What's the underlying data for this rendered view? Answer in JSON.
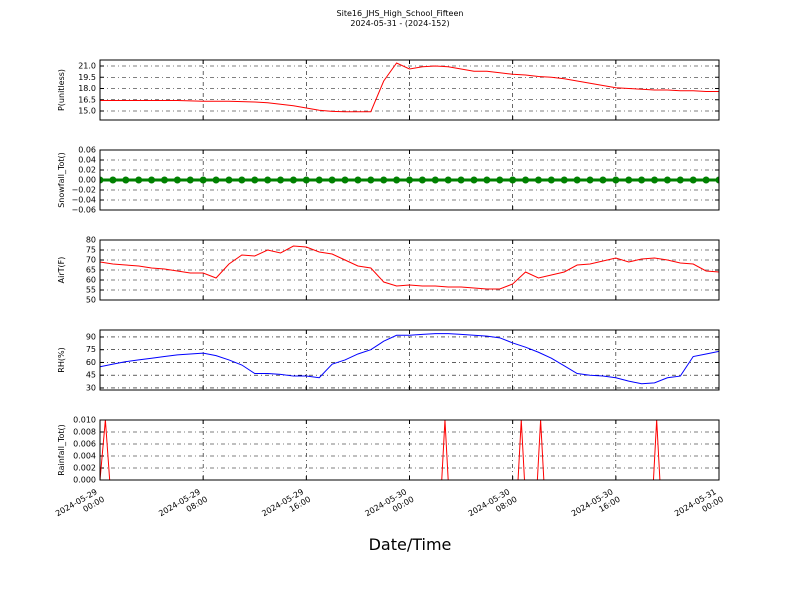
{
  "title": "Site16_JHS_High_School_Fifteen",
  "subtitle": "2024-05-31 - (2024-152)",
  "xlabel": "Date/Time",
  "chart_data": [
    {
      "type": "line",
      "ylabel": "P(unitless)",
      "color": "#ff0000",
      "grid": true,
      "xlim": [
        "2024-05-29 00:00",
        "2024-05-31 00:00"
      ],
      "xticks": [
        "2024-05-29 00:00",
        "2024-05-29 08:00",
        "2024-05-29 16:00",
        "2024-05-30 00:00",
        "2024-05-30 08:00",
        "2024-05-30 16:00",
        "2024-05-31 00:00"
      ],
      "ylim": [
        13.8,
        21.8
      ],
      "yticks": [
        {
          "value": 15,
          "label": "15.0"
        },
        {
          "value": 16.5,
          "label": "16.5"
        },
        {
          "value": 18,
          "label": "18.0"
        },
        {
          "value": 19.5,
          "label": "19.5"
        },
        {
          "value": 21,
          "label": "21.0"
        }
      ],
      "x": [
        "2024-05-29 00:00",
        "2024-05-29 01:00",
        "2024-05-29 02:00",
        "2024-05-29 03:00",
        "2024-05-29 04:00",
        "2024-05-29 05:00",
        "2024-05-29 06:00",
        "2024-05-29 07:00",
        "2024-05-29 08:00",
        "2024-05-29 09:00",
        "2024-05-29 10:00",
        "2024-05-29 11:00",
        "2024-05-29 12:00",
        "2024-05-29 13:00",
        "2024-05-29 14:00",
        "2024-05-29 15:00",
        "2024-05-29 16:00",
        "2024-05-29 17:00",
        "2024-05-29 18:00",
        "2024-05-29 19:00",
        "2024-05-29 20:00",
        "2024-05-29 21:00",
        "2024-05-29 22:00",
        "2024-05-29 23:00",
        "2024-05-30 00:00",
        "2024-05-30 01:00",
        "2024-05-30 02:00",
        "2024-05-30 03:00",
        "2024-05-30 04:00",
        "2024-05-30 05:00",
        "2024-05-30 06:00",
        "2024-05-30 07:00",
        "2024-05-30 08:00",
        "2024-05-30 09:00",
        "2024-05-30 10:00",
        "2024-05-30 11:00",
        "2024-05-30 12:00",
        "2024-05-30 13:00",
        "2024-05-30 14:00",
        "2024-05-30 15:00",
        "2024-05-30 16:00",
        "2024-05-30 17:00",
        "2024-05-30 18:00",
        "2024-05-30 19:00",
        "2024-05-30 20:00",
        "2024-05-30 21:00",
        "2024-05-30 22:00",
        "2024-05-30 23:00",
        "2024-05-31 00:00"
      ],
      "values": [
        16.4,
        16.4,
        16.4,
        16.4,
        16.4,
        16.4,
        16.4,
        16.35,
        16.3,
        16.3,
        16.3,
        16.25,
        16.2,
        16.1,
        15.9,
        15.7,
        15.4,
        15.1,
        14.95,
        14.9,
        14.9,
        14.9,
        19.0,
        21.4,
        20.6,
        20.9,
        21.0,
        20.9,
        20.6,
        20.3,
        20.3,
        20.1,
        19.9,
        19.8,
        19.6,
        19.5,
        19.3,
        19.0,
        18.7,
        18.4,
        18.1,
        18.0,
        17.9,
        17.8,
        17.8,
        17.7,
        17.7,
        17.6,
        17.6
      ]
    },
    {
      "type": "line",
      "ylabel": "Snowfall_Tot()",
      "color": "#008000",
      "markers": true,
      "grid": true,
      "xlim": [
        "2024-05-29 00:00",
        "2024-05-31 00:00"
      ],
      "xticks": [
        "2024-05-29 00:00",
        "2024-05-29 08:00",
        "2024-05-29 16:00",
        "2024-05-30 00:00",
        "2024-05-30 08:00",
        "2024-05-30 16:00",
        "2024-05-31 00:00"
      ],
      "ylim": [
        -0.06,
        0.06
      ],
      "yticks": [
        {
          "value": -0.06,
          "label": "−0.06"
        },
        {
          "value": -0.04,
          "label": "−0.04"
        },
        {
          "value": -0.02,
          "label": "−0.02"
        },
        {
          "value": 0,
          "label": "0.00"
        },
        {
          "value": 0.02,
          "label": "0.02"
        },
        {
          "value": 0.04,
          "label": "0.04"
        },
        {
          "value": 0.06,
          "label": "0.06"
        }
      ],
      "x": [
        "2024-05-29 00:00",
        "2024-05-29 01:00",
        "2024-05-29 02:00",
        "2024-05-29 03:00",
        "2024-05-29 04:00",
        "2024-05-29 05:00",
        "2024-05-29 06:00",
        "2024-05-29 07:00",
        "2024-05-29 08:00",
        "2024-05-29 09:00",
        "2024-05-29 10:00",
        "2024-05-29 11:00",
        "2024-05-29 12:00",
        "2024-05-29 13:00",
        "2024-05-29 14:00",
        "2024-05-29 15:00",
        "2024-05-29 16:00",
        "2024-05-29 17:00",
        "2024-05-29 18:00",
        "2024-05-29 19:00",
        "2024-05-29 20:00",
        "2024-05-29 21:00",
        "2024-05-29 22:00",
        "2024-05-29 23:00",
        "2024-05-30 00:00",
        "2024-05-30 01:00",
        "2024-05-30 02:00",
        "2024-05-30 03:00",
        "2024-05-30 04:00",
        "2024-05-30 05:00",
        "2024-05-30 06:00",
        "2024-05-30 07:00",
        "2024-05-30 08:00",
        "2024-05-30 09:00",
        "2024-05-30 10:00",
        "2024-05-30 11:00",
        "2024-05-30 12:00",
        "2024-05-30 13:00",
        "2024-05-30 14:00",
        "2024-05-30 15:00",
        "2024-05-30 16:00",
        "2024-05-30 17:00",
        "2024-05-30 18:00",
        "2024-05-30 19:00",
        "2024-05-30 20:00",
        "2024-05-30 21:00",
        "2024-05-30 22:00",
        "2024-05-30 23:00",
        "2024-05-31 00:00"
      ],
      "values": [
        0,
        0,
        0,
        0,
        0,
        0,
        0,
        0,
        0,
        0,
        0,
        0,
        0,
        0,
        0,
        0,
        0,
        0,
        0,
        0,
        0,
        0,
        0,
        0,
        0,
        0,
        0,
        0,
        0,
        0,
        0,
        0,
        0,
        0,
        0,
        0,
        0,
        0,
        0,
        0,
        0,
        0,
        0,
        0,
        0,
        0,
        0,
        0,
        0
      ]
    },
    {
      "type": "line",
      "ylabel": "AirT(F)",
      "color": "#ff0000",
      "grid": true,
      "xlim": [
        "2024-05-29 00:00",
        "2024-05-31 00:00"
      ],
      "xticks": [
        "2024-05-29 00:00",
        "2024-05-29 08:00",
        "2024-05-29 16:00",
        "2024-05-30 00:00",
        "2024-05-30 08:00",
        "2024-05-30 16:00",
        "2024-05-31 00:00"
      ],
      "ylim": [
        50,
        80
      ],
      "yticks": [
        50,
        55,
        60,
        65,
        70,
        75,
        80
      ],
      "x": [
        "2024-05-29 00:00",
        "2024-05-29 01:00",
        "2024-05-29 02:00",
        "2024-05-29 03:00",
        "2024-05-29 04:00",
        "2024-05-29 05:00",
        "2024-05-29 06:00",
        "2024-05-29 07:00",
        "2024-05-29 08:00",
        "2024-05-29 09:00",
        "2024-05-29 10:00",
        "2024-05-29 11:00",
        "2024-05-29 12:00",
        "2024-05-29 13:00",
        "2024-05-29 14:00",
        "2024-05-29 15:00",
        "2024-05-29 16:00",
        "2024-05-29 17:00",
        "2024-05-29 18:00",
        "2024-05-29 19:00",
        "2024-05-29 20:00",
        "2024-05-29 21:00",
        "2024-05-29 22:00",
        "2024-05-29 23:00",
        "2024-05-30 00:00",
        "2024-05-30 01:00",
        "2024-05-30 02:00",
        "2024-05-30 03:00",
        "2024-05-30 04:00",
        "2024-05-30 05:00",
        "2024-05-30 06:00",
        "2024-05-30 07:00",
        "2024-05-30 08:00",
        "2024-05-30 09:00",
        "2024-05-30 10:00",
        "2024-05-30 11:00",
        "2024-05-30 12:00",
        "2024-05-30 13:00",
        "2024-05-30 14:00",
        "2024-05-30 15:00",
        "2024-05-30 16:00",
        "2024-05-30 17:00",
        "2024-05-30 18:00",
        "2024-05-30 19:00",
        "2024-05-30 20:00",
        "2024-05-30 21:00",
        "2024-05-30 22:00",
        "2024-05-30 23:00",
        "2024-05-31 00:00"
      ],
      "values": [
        69,
        68,
        67.5,
        67,
        66,
        65.5,
        64.5,
        63.5,
        63.5,
        61,
        68,
        72.5,
        72,
        75,
        73.5,
        77,
        76.5,
        74,
        73,
        70,
        67,
        66,
        59,
        57,
        57.5,
        57,
        57,
        56.5,
        56.5,
        56,
        55.5,
        55.5,
        58,
        64,
        61,
        62.5,
        64,
        67.5,
        68,
        69.5,
        71,
        69,
        70.5,
        71,
        70,
        68.5,
        68,
        64.5,
        64
      ]
    },
    {
      "type": "line",
      "ylabel": "RH(%)",
      "color": "#0000ff",
      "grid": true,
      "xlim": [
        "2024-05-29 00:00",
        "2024-05-31 00:00"
      ],
      "xticks": [
        "2024-05-29 00:00",
        "2024-05-29 08:00",
        "2024-05-29 16:00",
        "2024-05-30 00:00",
        "2024-05-30 08:00",
        "2024-05-30 16:00",
        "2024-05-31 00:00"
      ],
      "ylim": [
        27.6,
        98.2
      ],
      "yticks": [
        30,
        45,
        60,
        75,
        90
      ],
      "x": [
        "2024-05-29 00:00",
        "2024-05-29 01:00",
        "2024-05-29 02:00",
        "2024-05-29 03:00",
        "2024-05-29 04:00",
        "2024-05-29 05:00",
        "2024-05-29 06:00",
        "2024-05-29 07:00",
        "2024-05-29 08:00",
        "2024-05-29 09:00",
        "2024-05-29 10:00",
        "2024-05-29 11:00",
        "2024-05-29 12:00",
        "2024-05-29 13:00",
        "2024-05-29 14:00",
        "2024-05-29 15:00",
        "2024-05-29 16:00",
        "2024-05-29 17:00",
        "2024-05-29 18:00",
        "2024-05-29 19:00",
        "2024-05-29 20:00",
        "2024-05-29 21:00",
        "2024-05-29 22:00",
        "2024-05-29 23:00",
        "2024-05-30 00:00",
        "2024-05-30 01:00",
        "2024-05-30 02:00",
        "2024-05-30 03:00",
        "2024-05-30 04:00",
        "2024-05-30 05:00",
        "2024-05-30 06:00",
        "2024-05-30 07:00",
        "2024-05-30 08:00",
        "2024-05-30 09:00",
        "2024-05-30 10:00",
        "2024-05-30 11:00",
        "2024-05-30 12:00",
        "2024-05-30 13:00",
        "2024-05-30 14:00",
        "2024-05-30 15:00",
        "2024-05-30 16:00",
        "2024-05-30 17:00",
        "2024-05-30 18:00",
        "2024-05-30 19:00",
        "2024-05-30 20:00",
        "2024-05-30 21:00",
        "2024-05-30 22:00",
        "2024-05-30 23:00",
        "2024-05-31 00:00"
      ],
      "values": [
        55,
        58,
        61,
        63,
        65,
        67,
        69,
        70,
        71,
        68,
        63,
        57,
        47,
        47,
        46,
        44,
        44,
        42,
        58,
        63,
        70,
        75,
        85,
        92,
        92,
        93,
        94,
        94,
        93,
        92,
        91,
        89,
        83,
        78,
        72,
        65,
        56,
        47,
        45,
        44,
        42,
        38,
        35,
        36,
        42,
        44,
        67,
        70,
        73
      ]
    },
    {
      "type": "line",
      "ylabel": "Rainfall_Tot()",
      "color": "#ff0000",
      "grid": true,
      "xlim": [
        "2024-05-29 00:00",
        "2024-05-31 00:00"
      ],
      "xticks": [
        "2024-05-29 00:00",
        "2024-05-29 08:00",
        "2024-05-29 16:00",
        "2024-05-30 00:00",
        "2024-05-30 08:00",
        "2024-05-30 16:00",
        "2024-05-31 00:00"
      ],
      "ylim": [
        0,
        0.01
      ],
      "yticks": [
        {
          "value": 0,
          "label": "0.000"
        },
        {
          "value": 0.002,
          "label": "0.002"
        },
        {
          "value": 0.004,
          "label": "0.004"
        },
        {
          "value": 0.006,
          "label": "0.006"
        },
        {
          "value": 0.008,
          "label": "0.008"
        },
        {
          "value": 0.01,
          "label": "0.010"
        }
      ],
      "x": [
        "2024-05-29 00:00",
        "2024-05-29 00:25",
        "2024-05-29 00:45",
        "2024-05-30 02:30",
        "2024-05-30 02:45",
        "2024-05-30 03:00",
        "2024-05-30 08:25",
        "2024-05-30 08:40",
        "2024-05-30 08:55",
        "2024-05-30 09:55",
        "2024-05-30 10:10",
        "2024-05-30 10:25",
        "2024-05-30 18:55",
        "2024-05-30 19:10",
        "2024-05-30 19:25",
        "2024-05-31 00:00"
      ],
      "values": [
        0,
        0.01,
        0,
        0,
        0.01,
        0,
        0,
        0.01,
        0,
        0,
        0.01,
        0,
        0,
        0.01,
        0,
        0
      ]
    }
  ]
}
